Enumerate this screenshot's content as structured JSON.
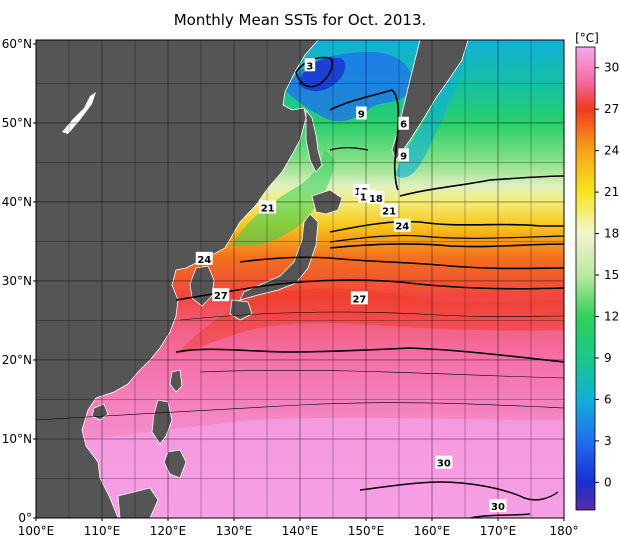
{
  "title": "Monthly Mean SSTs for Oct. 2013.",
  "unit": "[°C]",
  "lat_ticks": [
    {
      "label": "60°N",
      "lat": 60
    },
    {
      "label": "50°N",
      "lat": 50
    },
    {
      "label": "40°N",
      "lat": 40
    },
    {
      "label": "30°N",
      "lat": 30
    },
    {
      "label": "20°N",
      "lat": 20
    },
    {
      "label": "10°N",
      "lat": 10
    },
    {
      "label": "0°",
      "lat": 0
    }
  ],
  "lon_ticks": [
    {
      "label": "100°E",
      "lon": 100
    },
    {
      "label": "110°E",
      "lon": 110
    },
    {
      "label": "120°E",
      "lon": 120
    },
    {
      "label": "130°E",
      "lon": 130
    },
    {
      "label": "140°E",
      "lon": 140
    },
    {
      "label": "150°E",
      "lon": 150
    },
    {
      "label": "160°E",
      "lon": 160
    },
    {
      "label": "170°E",
      "lon": 170
    },
    {
      "label": "180°",
      "lon": 180
    }
  ],
  "colorbar": {
    "range": [
      -2,
      31.5
    ],
    "ticks": [
      {
        "label": "30",
        "value": 30
      },
      {
        "label": "27",
        "value": 27
      },
      {
        "label": "24",
        "value": 24
      },
      {
        "label": "21",
        "value": 21
      },
      {
        "label": "18",
        "value": 18
      },
      {
        "label": "15",
        "value": 15
      },
      {
        "label": "12",
        "value": 12
      },
      {
        "label": "9",
        "value": 9
      },
      {
        "label": "6",
        "value": 6
      },
      {
        "label": "3",
        "value": 3
      },
      {
        "label": "0",
        "value": 0
      }
    ],
    "stops": [
      {
        "value": -2,
        "color": "#5a2aa8"
      },
      {
        "value": 0,
        "color": "#1a2fd0"
      },
      {
        "value": 3,
        "color": "#1f6ff0"
      },
      {
        "value": 6,
        "color": "#10b0d8"
      },
      {
        "value": 9,
        "color": "#18c88a"
      },
      {
        "value": 12,
        "color": "#2ed25a"
      },
      {
        "value": 15,
        "color": "#b9e8a0"
      },
      {
        "value": 18,
        "color": "#f4f4d0"
      },
      {
        "value": 21,
        "color": "#f6e61a"
      },
      {
        "value": 24,
        "color": "#f5a51a"
      },
      {
        "value": 27,
        "color": "#f03a1e"
      },
      {
        "value": 29,
        "color": "#f46aa0"
      },
      {
        "value": 31.5,
        "color": "#f5a8f0"
      }
    ]
  },
  "colors": {
    "land": "#555555",
    "coast": "#ffffff",
    "grid": "#000000",
    "contour": "#000000"
  },
  "contour_labels": [
    {
      "text": "3",
      "lon": 141.5,
      "lat": 57.3
    },
    {
      "text": "9",
      "lon": 149.3,
      "lat": 51.2
    },
    {
      "text": "6",
      "lon": 155.7,
      "lat": 49.9
    },
    {
      "text": "9",
      "lon": 155.7,
      "lat": 45.9
    },
    {
      "text": "12",
      "lon": 149.3,
      "lat": 41.4
    },
    {
      "text": "15",
      "lon": 150.1,
      "lat": 40.7
    },
    {
      "text": "18",
      "lon": 151.5,
      "lat": 40.5
    },
    {
      "text": "21",
      "lon": 135.1,
      "lat": 39.3
    },
    {
      "text": "21",
      "lon": 153.5,
      "lat": 38.9
    },
    {
      "text": "24",
      "lon": 155.5,
      "lat": 37.0
    },
    {
      "text": "24",
      "lon": 125.5,
      "lat": 32.8
    },
    {
      "text": "27",
      "lon": 128.0,
      "lat": 28.2
    },
    {
      "text": "27",
      "lon": 149.0,
      "lat": 27.8
    },
    {
      "text": "30",
      "lon": 161.8,
      "lat": 7.0
    },
    {
      "text": "30",
      "lon": 170.0,
      "lat": 1.5
    }
  ]
}
